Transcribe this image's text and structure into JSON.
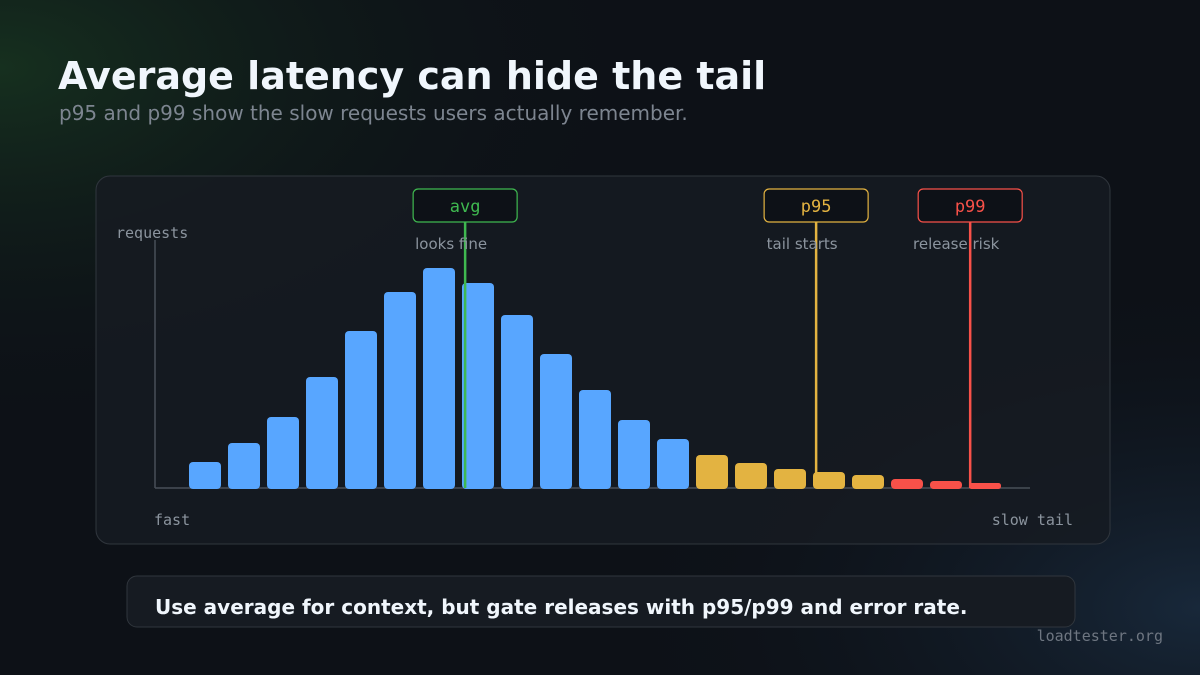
{
  "chart_data": {
    "type": "bar",
    "title": "Average latency can hide the tail",
    "subtitle": "p95 and p99 show the slow requests users actually remember.",
    "y_label": "requests",
    "x_label_left": "fast",
    "x_label_right": "slow tail",
    "values": [
      26,
      45,
      71,
      111,
      157,
      196,
      220,
      205,
      173,
      134,
      98,
      68,
      49,
      33,
      25,
      19,
      16,
      13,
      9,
      7,
      5
    ],
    "colors": [
      "#58a6ff",
      "#58a6ff",
      "#58a6ff",
      "#58a6ff",
      "#58a6ff",
      "#58a6ff",
      "#58a6ff",
      "#58a6ff",
      "#58a6ff",
      "#58a6ff",
      "#58a6ff",
      "#58a6ff",
      "#58a6ff",
      "#e3b341",
      "#e3b341",
      "#e3b341",
      "#e3b341",
      "#e3b341",
      "#f85149",
      "#f85149",
      "#f85149"
    ],
    "ylim": [
      0,
      250
    ],
    "markers": [
      {
        "label": "avg",
        "note": "looks fine",
        "x": 6.67,
        "color": "#3fb950"
      },
      {
        "label": "p95",
        "note": "tail starts",
        "x": 15.67,
        "color": "#e3b341"
      },
      {
        "label": "p99",
        "note": "release risk",
        "x": 19.62,
        "color": "#f85149"
      }
    ],
    "takeaway": "Use average for context, but gate releases with p95/p99 and error rate.",
    "brand": "loadtester.org"
  }
}
